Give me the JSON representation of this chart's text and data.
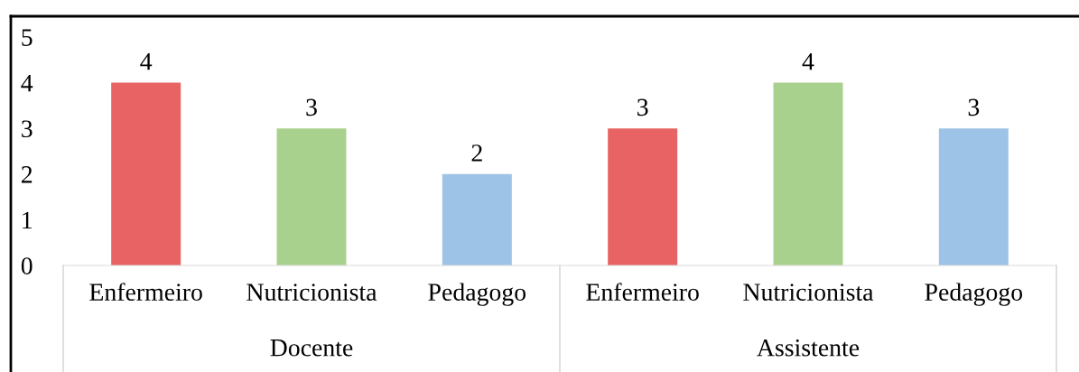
{
  "chart_data": {
    "type": "bar",
    "categories": [
      "Enfermeiro",
      "Nutricionista",
      "Pedagogo",
      "Enfermeiro",
      "Nutricionista",
      "Pedagogo"
    ],
    "values": [
      4,
      3,
      2,
      3,
      4,
      3
    ],
    "colors": [
      "#e86464",
      "#a9d18e",
      "#9dc3e6",
      "#e86464",
      "#a9d18e",
      "#9dc3e6"
    ],
    "ylim": [
      0,
      5
    ],
    "yticks": [
      0,
      1,
      2,
      3,
      4,
      5
    ],
    "data_labels": true,
    "grid": false,
    "legend": false,
    "annotations": [
      "Docente",
      "Assistente"
    ]
  }
}
